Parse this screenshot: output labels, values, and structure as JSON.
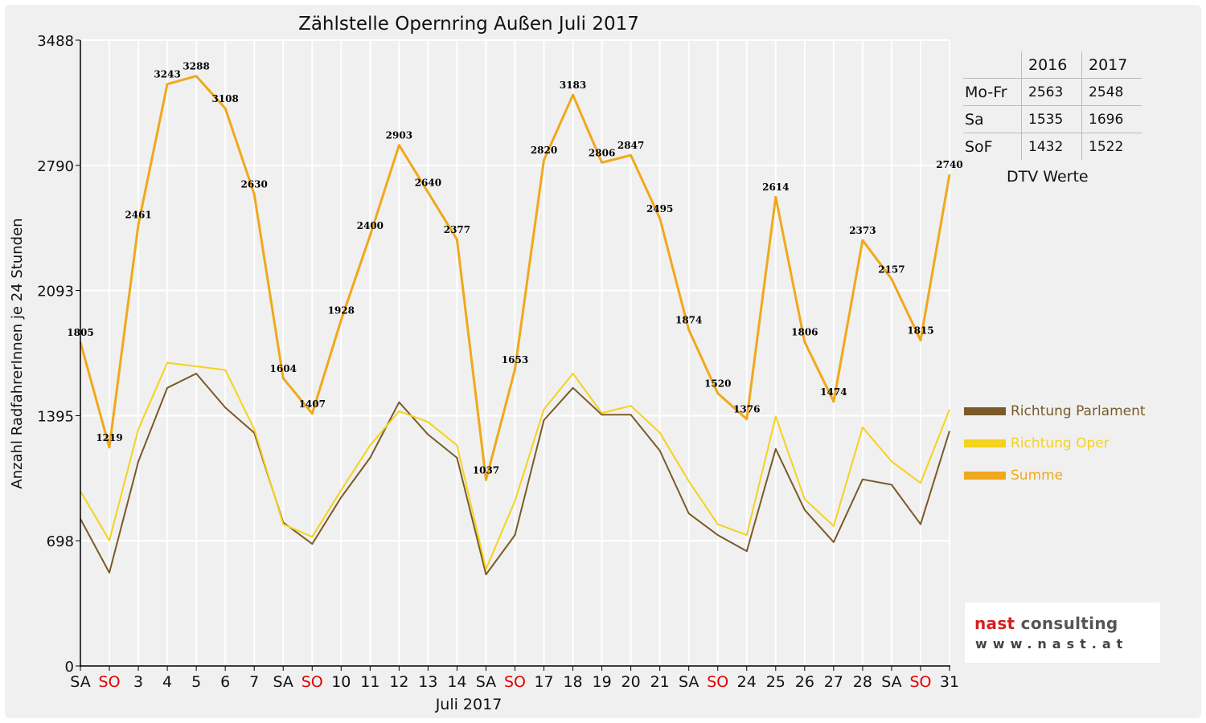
{
  "chart_data": {
    "type": "line",
    "title": "Zählstelle Opernring Außen Juli 2017",
    "xlabel": "Juli 2017",
    "ylabel": "Anzahl RadfahrerInnen je 24 Stunden",
    "ylim": [
      0,
      3488
    ],
    "yticks": [
      "0",
      "698",
      "1395",
      "2093",
      "2790",
      "3488"
    ],
    "ytick_values": [
      0,
      698,
      1395,
      2093,
      2790,
      3488
    ],
    "categories": [
      "SA",
      "SO",
      "3",
      "4",
      "5",
      "6",
      "7",
      "SA",
      "SO",
      "10",
      "11",
      "12",
      "13",
      "14",
      "SA",
      "SO",
      "17",
      "18",
      "19",
      "20",
      "21",
      "SA",
      "SO",
      "24",
      "25",
      "26",
      "27",
      "28",
      "SA",
      "SO",
      "31"
    ],
    "sunday_indices": [
      1,
      8,
      15,
      22,
      29
    ],
    "grid": true,
    "legend_position": "right",
    "series": [
      {
        "name": "Richtung Parlament",
        "color": "#7a5a28",
        "width": 2,
        "labels": false,
        "values": [
          820,
          520,
          1140,
          1550,
          1630,
          1440,
          1300,
          800,
          680,
          940,
          1160,
          1470,
          1290,
          1160,
          510,
          730,
          1370,
          1550,
          1400,
          1400,
          1200,
          850,
          730,
          640,
          1210,
          870,
          690,
          1040,
          1010,
          790,
          1310
        ]
      },
      {
        "name": "Richtung Oper",
        "color": "#f5d21c",
        "width": 2,
        "labels": false,
        "values": [
          975,
          700,
          1320,
          1690,
          1670,
          1650,
          1320,
          790,
          720,
          980,
          1230,
          1420,
          1360,
          1230,
          540,
          920,
          1430,
          1630,
          1410,
          1450,
          1300,
          1030,
          790,
          730,
          1390,
          930,
          780,
          1330,
          1140,
          1020,
          1430
        ]
      },
      {
        "name": "Summe",
        "color": "#f0a81c",
        "width": 3,
        "labels": true,
        "values": [
          1805,
          1219,
          2461,
          3243,
          3288,
          3108,
          2630,
          1604,
          1407,
          1928,
          2400,
          2903,
          2640,
          2377,
          1037,
          1653,
          2820,
          3183,
          2806,
          2847,
          2495,
          1874,
          1520,
          1376,
          2614,
          1806,
          1474,
          2373,
          2157,
          1815,
          2740
        ]
      }
    ]
  },
  "dtv_table": {
    "header": [
      "",
      "2016",
      "2017"
    ],
    "rows": [
      {
        "label": "Mo-Fr",
        "v2016": "2563",
        "v2017": "2548"
      },
      {
        "label": "Sa",
        "v2016": "1535",
        "v2017": "1696"
      },
      {
        "label": "SoF",
        "v2016": "1432",
        "v2017": "1522"
      }
    ],
    "caption": "DTV Werte"
  },
  "legend": [
    {
      "label": "Richtung Parlament",
      "color": "#7a5a28"
    },
    {
      "label": "Richtung Oper",
      "color": "#f5d21c"
    },
    {
      "label": "Summe",
      "color": "#f0a81c"
    }
  ],
  "logo": {
    "name_part1": "nast",
    "name_part2": " consulting",
    "url": "www.nast.at",
    "color_red": "#d42020",
    "color_dark": "#555555"
  },
  "colors": {
    "sunday_label": "#e00000",
    "axis": "#000000",
    "grid": "#ffffff"
  }
}
